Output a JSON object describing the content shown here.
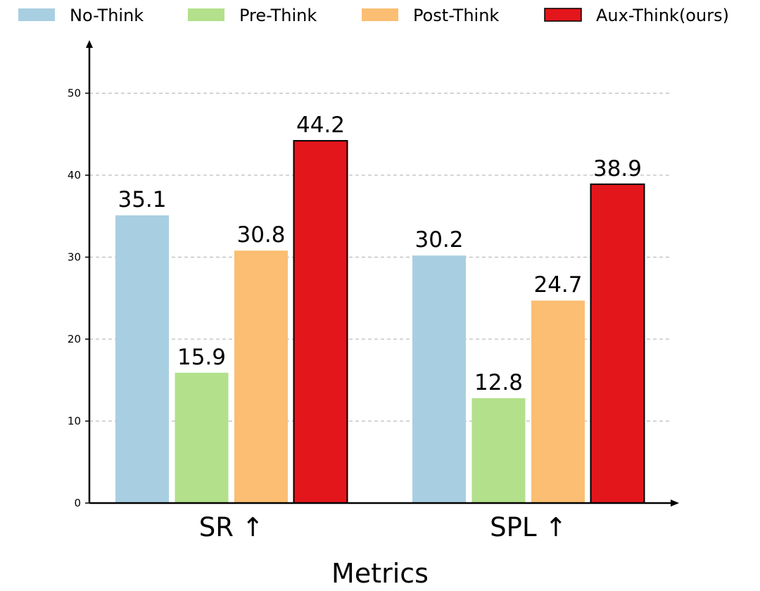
{
  "chart_data": {
    "type": "bar",
    "title": "",
    "xlabel": "Metrics",
    "ylabel": "",
    "categories": [
      "SR ↑",
      "SPL ↑"
    ],
    "series": [
      {
        "name": "No-Think",
        "color": "#a8cfe1",
        "values": [
          35.1,
          30.2
        ],
        "labels": [
          "35.1",
          "30.2"
        ]
      },
      {
        "name": "Pre-Think",
        "color": "#b3e08b",
        "values": [
          15.9,
          12.8
        ],
        "labels": [
          "15.9",
          "12.8"
        ]
      },
      {
        "name": "Post-Think",
        "color": "#fbbe72",
        "values": [
          30.8,
          24.7
        ],
        "labels": [
          "30.8",
          "24.7"
        ]
      },
      {
        "name": "Aux-Think(ours)",
        "color": "#e3161b",
        "values": [
          44.2,
          38.9
        ],
        "labels": [
          "44.2",
          "38.9"
        ]
      }
    ],
    "ylim": [
      0,
      55
    ],
    "yticks": [
      0,
      10,
      20,
      30,
      40,
      50
    ],
    "grid": true,
    "legend_position": "top"
  }
}
